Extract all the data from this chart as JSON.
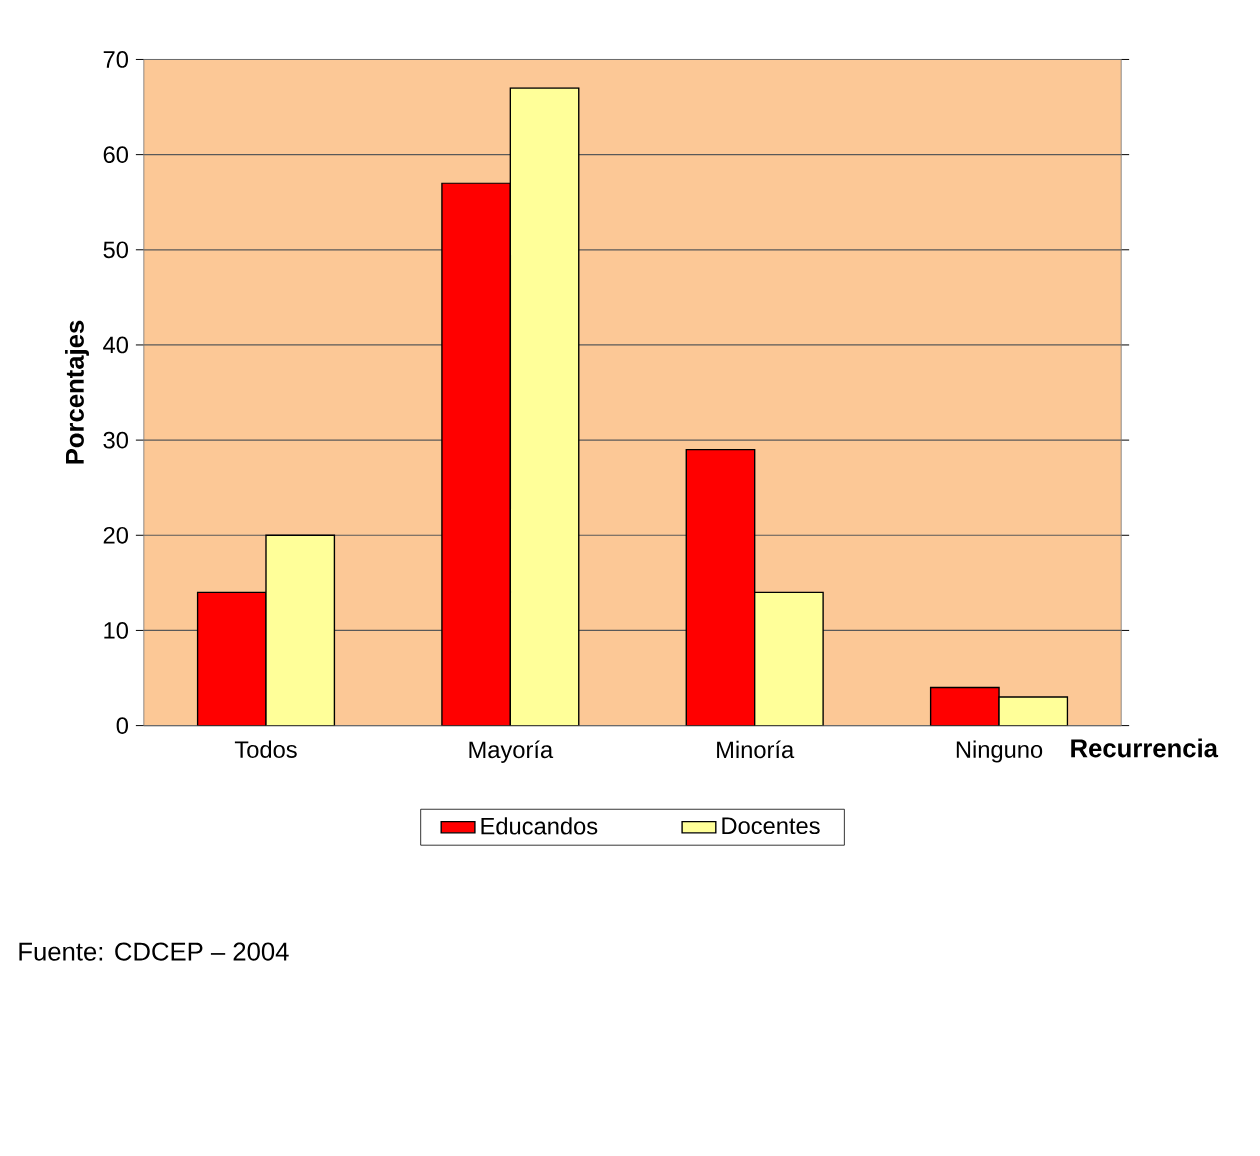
{
  "chart_data": {
    "type": "bar",
    "categories": [
      "Todos",
      "Mayoría",
      "Minoría",
      "Ninguno"
    ],
    "series": [
      {
        "name": "Educandos",
        "color": "#ff0000",
        "values": [
          14,
          57,
          29,
          4
        ]
      },
      {
        "name": "Docentes",
        "color": "#ffff99",
        "values": [
          20,
          67,
          14,
          3
        ]
      }
    ],
    "xlabel": "Recurrencia",
    "ylabel": "Porcentajes",
    "ylim": [
      0,
      70
    ],
    "yticks": [
      0,
      10,
      20,
      30,
      40,
      50,
      60,
      70
    ],
    "grid": "y",
    "legend": "bottom",
    "annotations": [
      "Fuente:  CDCEP – 2004"
    ]
  }
}
